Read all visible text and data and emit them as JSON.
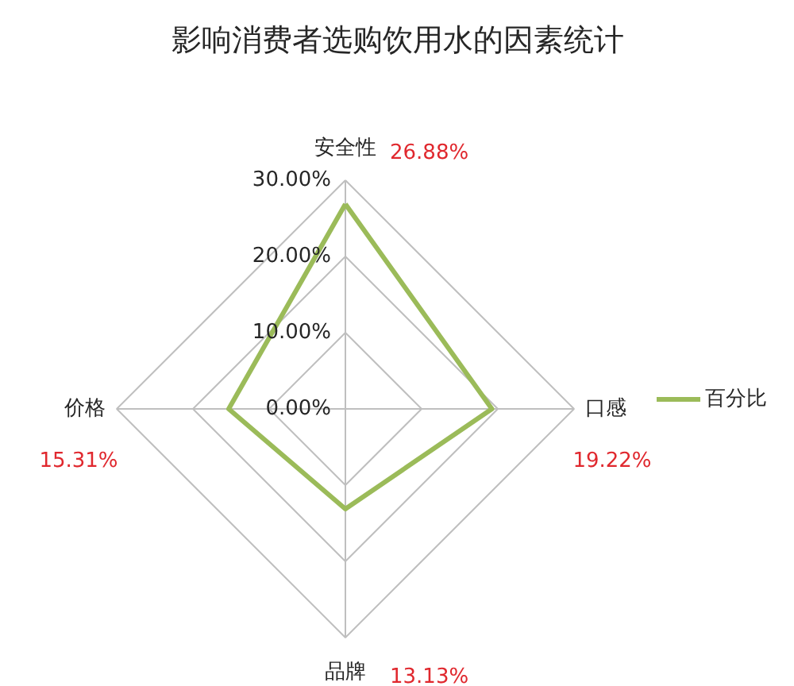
{
  "chart_data": {
    "type": "radar",
    "title": "影响消费者选购饮用水的因素统计",
    "categories": [
      "安全性",
      "口感",
      "品牌",
      "价格"
    ],
    "series": [
      {
        "name": "百分比",
        "color": "#9bbb59",
        "values": [
          26.88,
          19.22,
          13.13,
          15.31
        ]
      }
    ],
    "annotations": [
      "26.88%",
      "19.22%",
      "13.13%",
      "15.31%"
    ],
    "ylim": [
      0,
      30
    ],
    "yticks": [
      {
        "value": 0,
        "label": "0.00%"
      },
      {
        "value": 10,
        "label": "10.00%"
      },
      {
        "value": 20,
        "label": "20.00%"
      },
      {
        "value": 30,
        "label": "30.00%"
      }
    ],
    "grid": true,
    "legend": "right"
  }
}
